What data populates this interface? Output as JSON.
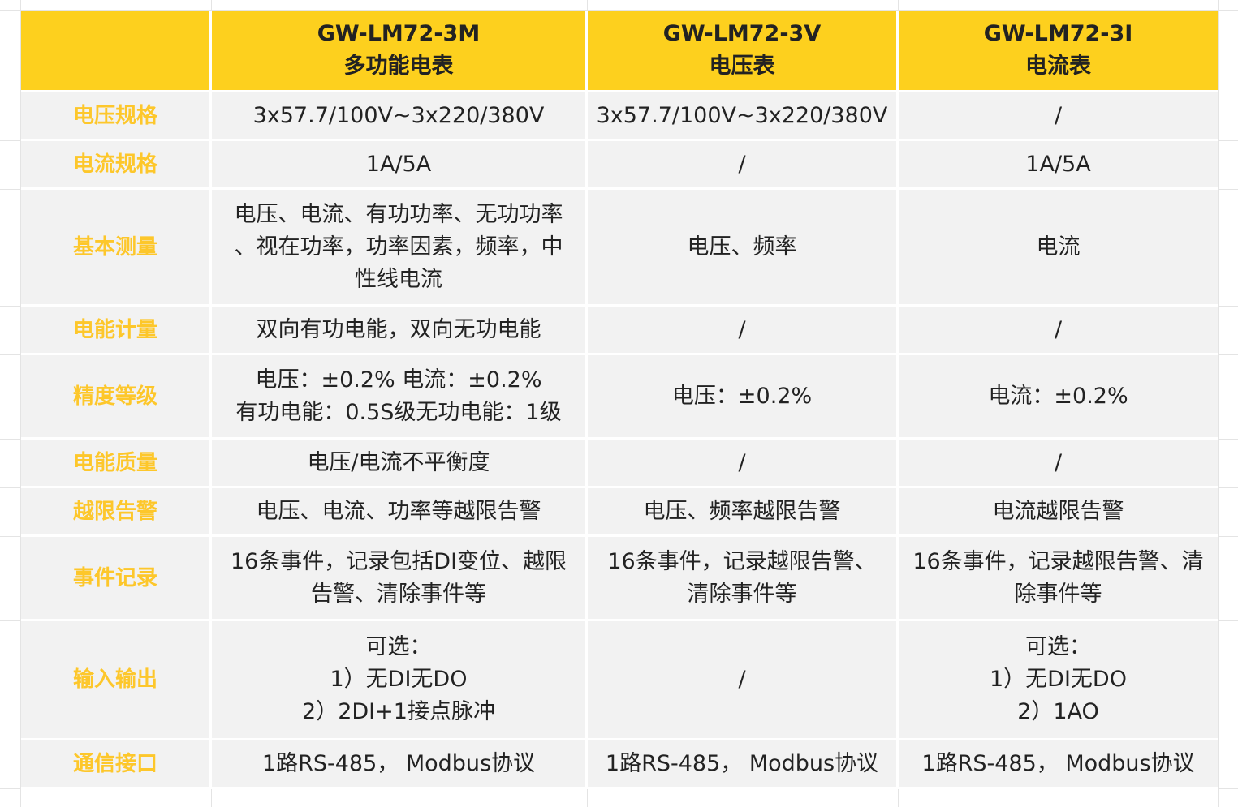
{
  "header": {
    "blank": "",
    "columns": [
      {
        "model": "GW-LM72-3M",
        "type": "多功能电表"
      },
      {
        "model": "GW-LM72-3V",
        "type": "电压表"
      },
      {
        "model": "GW-LM72-3I",
        "type": "电流表"
      }
    ]
  },
  "rows": [
    {
      "label": "电压规格",
      "values": [
        [
          "3x57.7/100V~3x220/380V"
        ],
        [
          "3x57.7/100V~3x220/380V"
        ],
        [
          "/"
        ]
      ]
    },
    {
      "label": "电流规格",
      "values": [
        [
          "1A/5A"
        ],
        [
          "/"
        ],
        [
          "1A/5A"
        ]
      ]
    },
    {
      "label": "基本测量",
      "values": [
        [
          "电压、电流、有功功率、无功功率",
          "、视在功率，功率因素，频率，中",
          "性线电流"
        ],
        [
          "电压、频率"
        ],
        [
          "电流"
        ]
      ]
    },
    {
      "label": "电能计量",
      "values": [
        [
          "双向有功电能，双向无功电能"
        ],
        [
          "/"
        ],
        [
          "/"
        ]
      ]
    },
    {
      "label": "精度等级",
      "values": [
        [
          "电压：±0.2% 电流：±0.2%",
          "有功电能：0.5S级无功电能：1级"
        ],
        [
          "电压：±0.2%"
        ],
        [
          "电流：±0.2%"
        ]
      ]
    },
    {
      "label": "电能质量",
      "values": [
        [
          "电压/电流不平衡度"
        ],
        [
          "/"
        ],
        [
          "/"
        ]
      ]
    },
    {
      "label": "越限告警",
      "values": [
        [
          "电压、电流、功率等越限告警"
        ],
        [
          "电压、频率越限告警"
        ],
        [
          "电流越限告警"
        ]
      ]
    },
    {
      "label": "事件记录",
      "values": [
        [
          "16条事件，记录包括DI变位、越限",
          "告警、清除事件等"
        ],
        [
          "16条事件，记录越限告警、",
          "清除事件等"
        ],
        [
          "16条事件，记录越限告警、清",
          "除事件等"
        ]
      ]
    },
    {
      "label": "输入输出",
      "values": [
        [
          "可选：",
          "1）无DI无DO",
          "2）2DI+1接点脉冲"
        ],
        [
          "/"
        ],
        [
          "可选：",
          "1）无DI无DO",
          "2）1AO"
        ]
      ]
    },
    {
      "label": "通信接口",
      "values": [
        [
          "1路RS-485， Modbus协议"
        ],
        [
          "1路RS-485， Modbus协议"
        ],
        [
          "1路RS-485， Modbus协议"
        ]
      ]
    }
  ],
  "colors": {
    "header_bg": "#fdd01e",
    "row_label": "#fdc72b",
    "cell_bg": "#f2f2f2"
  }
}
